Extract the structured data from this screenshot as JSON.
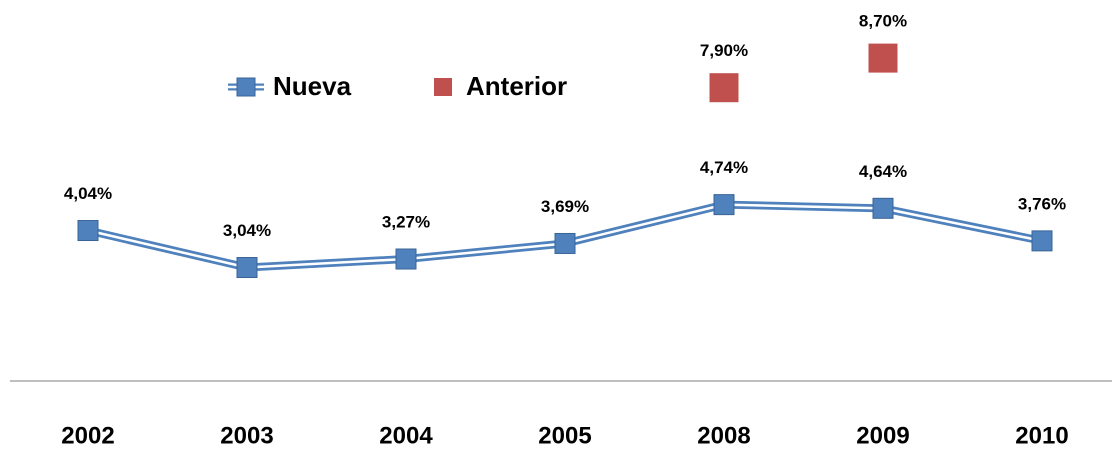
{
  "chart_data": {
    "type": "line",
    "categories": [
      "2002",
      "2003",
      "2004",
      "2005",
      "2008",
      "2009",
      "2010"
    ],
    "series": [
      {
        "name": "Nueva",
        "color": "#4f81bd",
        "values": [
          4.04,
          3.04,
          3.27,
          3.69,
          4.74,
          4.64,
          3.76
        ],
        "value_labels": [
          "4,04%",
          "3,04%",
          "3,27%",
          "3,69%",
          "4,74%",
          "4,64%",
          "3,76%"
        ]
      },
      {
        "name": "Anterior",
        "color": "#c0504d",
        "values": [
          null,
          null,
          null,
          null,
          7.9,
          8.7,
          null
        ],
        "value_labels": [
          null,
          null,
          null,
          null,
          "7,90%",
          "8,70%",
          null
        ]
      }
    ],
    "ylim": [
      0,
      10
    ]
  }
}
